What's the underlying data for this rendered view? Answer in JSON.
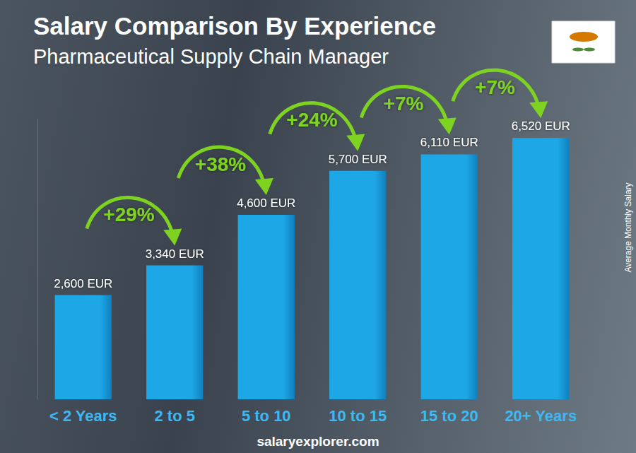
{
  "chart_data": {
    "type": "bar",
    "title": "Salary Comparison By Experience",
    "subtitle": "Pharmaceutical Supply Chain Manager",
    "ylabel": "Average Monthly Salary",
    "categories": [
      "< 2 Years",
      "2 to 5",
      "5 to 10",
      "10 to 15",
      "15 to 20",
      "20+ Years"
    ],
    "values": [
      2600,
      3340,
      4600,
      5700,
      6110,
      6520
    ],
    "value_labels": [
      "2,600 EUR",
      "3,340 EUR",
      "4,600 EUR",
      "5,700 EUR",
      "6,110 EUR",
      "6,520 EUR"
    ],
    "annotations": [
      "+29%",
      "+38%",
      "+24%",
      "+7%",
      "+7%"
    ],
    "source": "salaryexplorer.com",
    "color": "#1ea7e6",
    "ylim": [
      0,
      7000
    ],
    "grid": false,
    "data_labels": true,
    "tick_labels": "x"
  }
}
